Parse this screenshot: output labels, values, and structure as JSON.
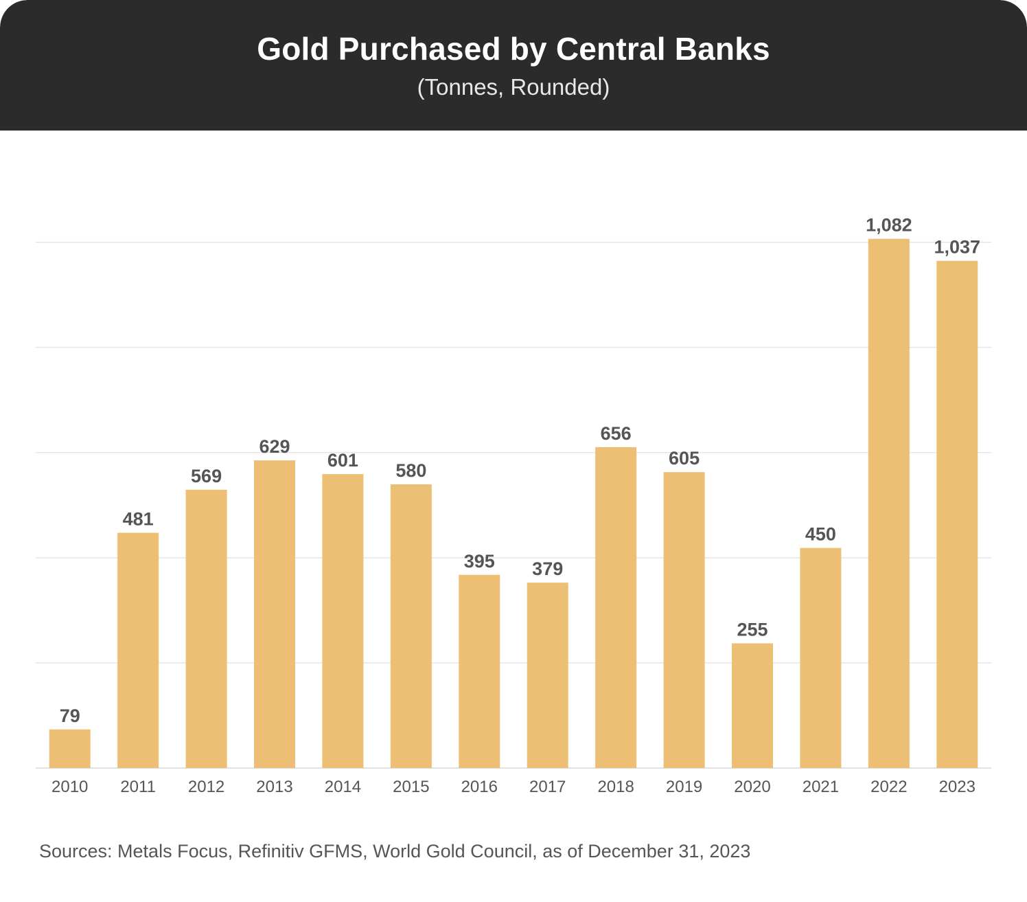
{
  "header": {
    "title": "Gold Purchased by Central Banks",
    "subtitle": "(Tonnes, Rounded)"
  },
  "chart_data": {
    "type": "bar",
    "categories": [
      "2010",
      "2011",
      "2012",
      "2013",
      "2014",
      "2015",
      "2016",
      "2017",
      "2018",
      "2019",
      "2020",
      "2021",
      "2022",
      "2023"
    ],
    "values": [
      79,
      481,
      569,
      629,
      601,
      580,
      395,
      379,
      656,
      605,
      255,
      450,
      1082,
      1037
    ],
    "value_labels": [
      "79",
      "481",
      "569",
      "629",
      "601",
      "580",
      "395",
      "379",
      "656",
      "605",
      "255",
      "450",
      "1,082",
      "1,037"
    ],
    "ylim": [
      0,
      1100
    ],
    "grid": true,
    "axis_tick_labels_y": false,
    "colors": {
      "bar": "#edbf75",
      "grid": "#e6e6e6",
      "label": "#555555",
      "tick": "#555555"
    }
  },
  "footer": {
    "source": "Sources: Metals Focus, Refinitiv GFMS, World Gold Council, as of December 31, 2023"
  }
}
